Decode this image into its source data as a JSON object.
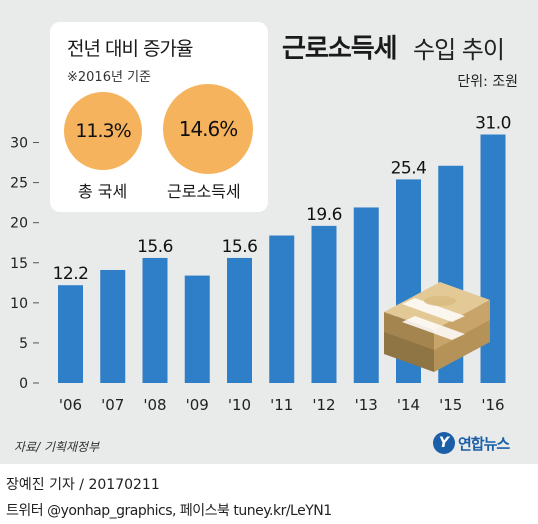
{
  "header": {
    "title_strong": "근로소득세",
    "title_light": "수입 추이",
    "unit": "단위: 조원"
  },
  "callout": {
    "title": "전년 대비 증가율",
    "base_year": "※2016년 기준",
    "items": [
      {
        "value": "11.3%",
        "label": "총 국세"
      },
      {
        "value": "14.6%",
        "label": "근로소득세"
      }
    ]
  },
  "chart_data": {
    "type": "bar",
    "categories": [
      "'06",
      "'07",
      "'08",
      "'09",
      "'10",
      "'11",
      "'12",
      "'13",
      "'14",
      "'15",
      "'16"
    ],
    "values": [
      12.2,
      14.1,
      15.6,
      13.4,
      15.6,
      18.4,
      19.6,
      21.9,
      25.4,
      27.1,
      31.0
    ],
    "data_labels": [
      "12.2",
      "",
      "15.6",
      "",
      "15.6",
      "",
      "19.6",
      "",
      "25.4",
      "",
      "31.0"
    ],
    "yticks": [
      "0",
      "5",
      "10",
      "15",
      "20",
      "25",
      "30"
    ],
    "ylim": [
      0,
      32
    ],
    "bar_color": "#2f7fc8",
    "grid": false,
    "title": "",
    "xlabel": "",
    "ylabel": ""
  },
  "footer": {
    "source": "자료/ 기획재정부",
    "logo_mark": "Y",
    "logo_text": "연합뉴스",
    "byline": "장예진 기자 / 20170211",
    "credits": "트위터 @yonhap_graphics, 페이스북 tuney.kr/LeYN1"
  }
}
